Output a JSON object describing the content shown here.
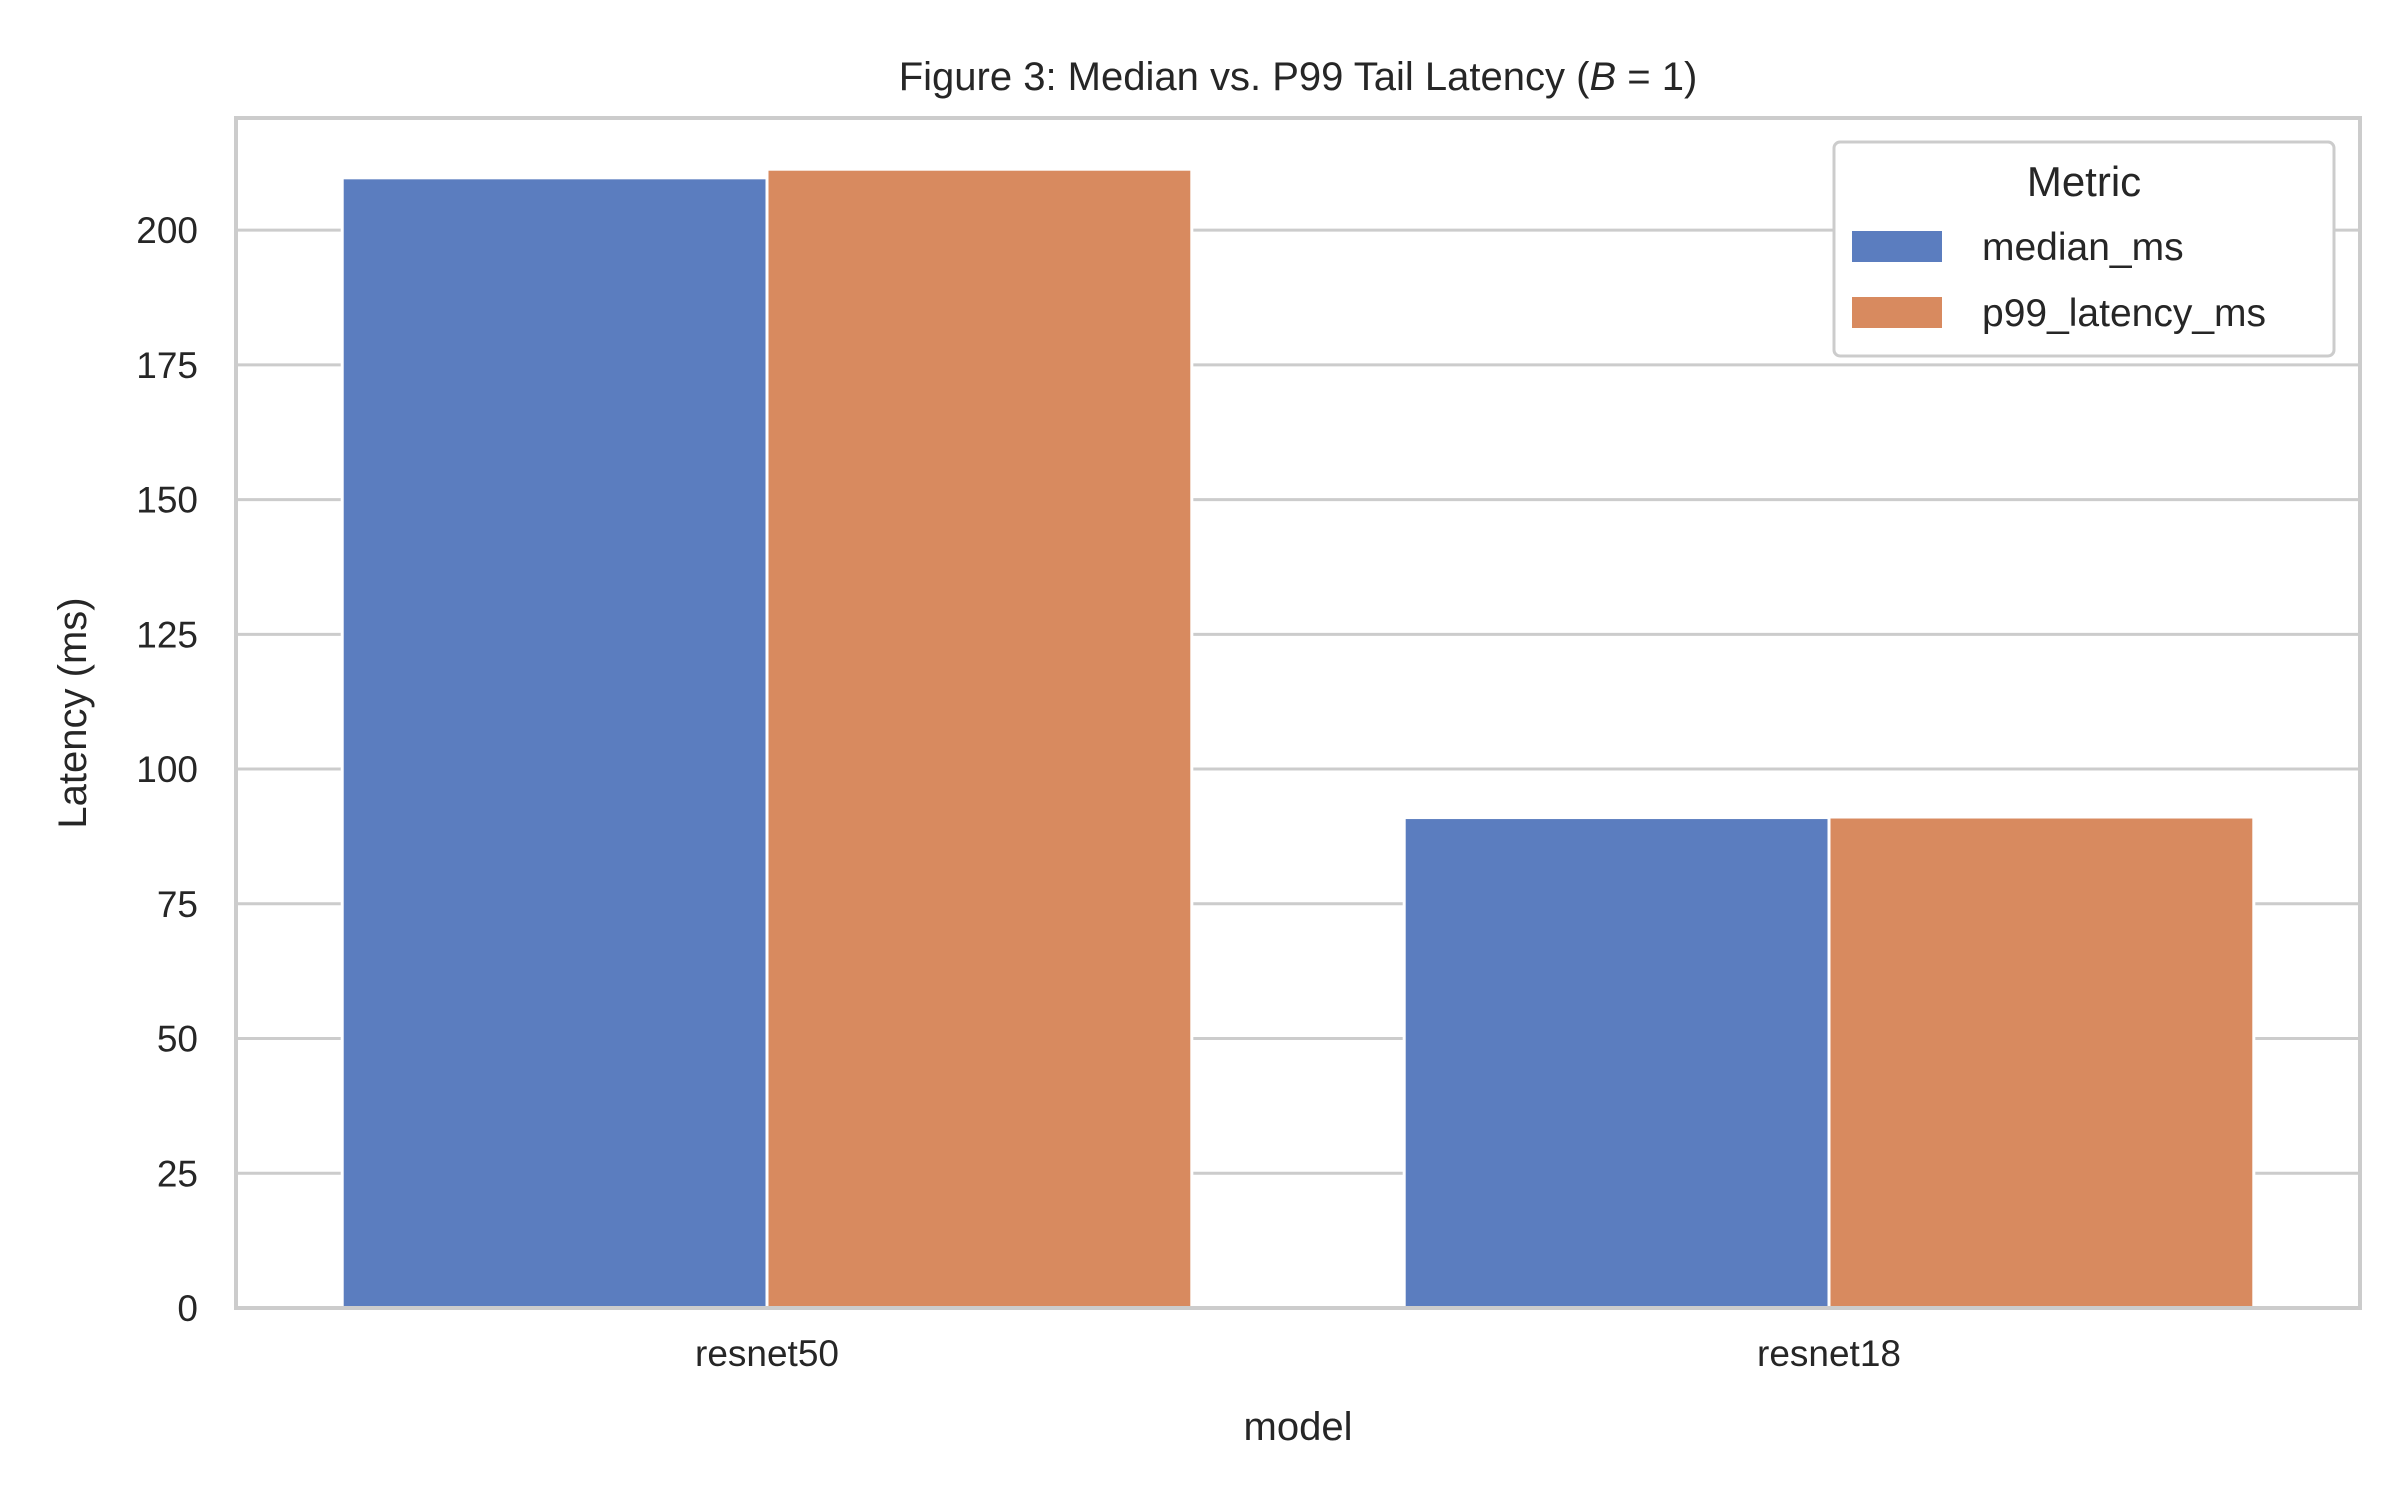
{
  "chart_data": {
    "type": "bar",
    "title_text": "Figure 3: Median vs. P99 Tail Latency (",
    "title_var": "B",
    "title_rest": " = 1)",
    "xlabel": "model",
    "ylabel": "Latency (ms)",
    "categories": [
      "resnet50",
      "resnet18"
    ],
    "series": [
      {
        "name": "median_ms",
        "color": "#5b7dbf",
        "values": [
          209.7,
          91.0
        ]
      },
      {
        "name": "p99_latency_ms",
        "color": "#d88a5f",
        "values": [
          211.3,
          91.1
        ]
      }
    ],
    "ylim": [
      0,
      220.8
    ],
    "yticks": [
      0,
      25,
      50,
      75,
      100,
      125,
      150,
      175,
      200
    ],
    "grid": true,
    "legend": {
      "title": "Metric",
      "placement": "top-right"
    }
  }
}
